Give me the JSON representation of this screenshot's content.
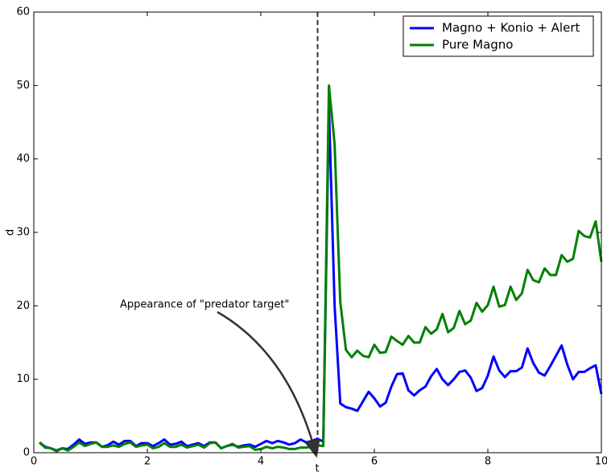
{
  "chart_data": {
    "type": "line",
    "xlabel": "t",
    "ylabel": "d",
    "annotation": "Appearance of \"predator target\"",
    "vline": 5,
    "legend": "upper right",
    "xlim": [
      0,
      10
    ],
    "ylim": [
      0,
      60
    ],
    "xticks": [
      0,
      2,
      4,
      6,
      8,
      10
    ],
    "yticks": [
      0,
      10,
      20,
      30,
      40,
      50,
      60
    ],
    "x": [
      0.1,
      0.2,
      0.3,
      0.4,
      0.5,
      0.6,
      0.7,
      0.8,
      0.9,
      1.0,
      1.1,
      1.2,
      1.3,
      1.4,
      1.5,
      1.6,
      1.7,
      1.8,
      1.9,
      2.0,
      2.1,
      2.2,
      2.3,
      2.4,
      2.5,
      2.6,
      2.7,
      2.8,
      2.9,
      3.0,
      3.1,
      3.2,
      3.3,
      3.4,
      3.5,
      3.6,
      3.7,
      3.8,
      3.9,
      4.0,
      4.1,
      4.2,
      4.3,
      4.4,
      4.5,
      4.6,
      4.7,
      4.8,
      4.9,
      5.0,
      5.1,
      5.2,
      5.3,
      5.4,
      5.5,
      5.6,
      5.7,
      5.8,
      5.9,
      6.0,
      6.1,
      6.2,
      6.3,
      6.4,
      6.5,
      6.6,
      6.7,
      6.8,
      6.9,
      7.0,
      7.1,
      7.2,
      7.3,
      7.4,
      7.5,
      7.6,
      7.7,
      7.8,
      7.9,
      8.0,
      8.1,
      8.2,
      8.3,
      8.4,
      8.5,
      8.6,
      8.7,
      8.8,
      8.9,
      9.0,
      9.1,
      9.2,
      9.3,
      9.4,
      9.5,
      9.6,
      9.7,
      9.8,
      9.9,
      10.0
    ],
    "series": [
      {
        "name": "Magno + Konio + Alert",
        "color": "#0000ff",
        "values": [
          1.4,
          0.8,
          0.6,
          0.3,
          0.6,
          0.5,
          1.1,
          1.8,
          1.2,
          1.4,
          1.4,
          0.8,
          1.0,
          1.5,
          1.1,
          1.6,
          1.6,
          0.9,
          1.3,
          1.3,
          0.9,
          1.3,
          1.8,
          1.1,
          1.2,
          1.5,
          0.9,
          1.1,
          1.3,
          0.9,
          1.4,
          1.4,
          0.6,
          0.9,
          1.1,
          0.8,
          1.0,
          1.1,
          0.8,
          1.2,
          1.6,
          1.3,
          1.6,
          1.4,
          1.1,
          1.3,
          1.8,
          1.4,
          1.6,
          1.9,
          1.5,
          47,
          20,
          6.7,
          6.2,
          6.0,
          5.7,
          7.0,
          8.3,
          7.4,
          6.3,
          6.8,
          9.0,
          10.7,
          10.8,
          8.5,
          7.8,
          8.5,
          9.0,
          10.4,
          11.4,
          10.0,
          9.2,
          10.0,
          11.0,
          11.2,
          10.2,
          8.4,
          8.8,
          10.5,
          13.1,
          11.2,
          10.3,
          11.1,
          11.1,
          11.6,
          14.2,
          12.2,
          10.9,
          10.5,
          11.8,
          13.2,
          14.6,
          12.0,
          10.0,
          11.0,
          11.0,
          11.5,
          11.9,
          8.0
        ]
      },
      {
        "name": "Pure Magno",
        "color": "#008000",
        "values": [
          1.4,
          0.7,
          0.6,
          0.2,
          0.6,
          0.3,
          0.8,
          1.4,
          0.9,
          1.2,
          1.4,
          0.8,
          0.8,
          1.0,
          0.8,
          1.2,
          1.4,
          0.8,
          1.0,
          1.1,
          0.6,
          0.8,
          1.3,
          0.8,
          0.8,
          1.1,
          0.7,
          0.9,
          1.1,
          0.7,
          1.3,
          1.4,
          0.6,
          0.9,
          1.2,
          0.7,
          0.8,
          0.9,
          0.4,
          0.5,
          0.8,
          0.6,
          0.8,
          0.7,
          0.5,
          0.5,
          0.7,
          0.7,
          0.8,
          1.0,
          0.9,
          50,
          42,
          20.5,
          14.0,
          13.0,
          13.9,
          13.2,
          13.0,
          14.7,
          13.6,
          13.7,
          15.8,
          15.2,
          14.7,
          15.9,
          15.0,
          15.0,
          17.1,
          16.2,
          16.8,
          18.9,
          16.4,
          17.0,
          19.3,
          17.5,
          18.0,
          20.4,
          19.2,
          20.1,
          22.6,
          19.9,
          20.1,
          22.6,
          20.8,
          21.7,
          24.9,
          23.5,
          23.2,
          25.1,
          24.2,
          24.2,
          26.9,
          26.0,
          26.4,
          30.2,
          29.5,
          29.3,
          31.5,
          26.0
        ]
      }
    ]
  }
}
